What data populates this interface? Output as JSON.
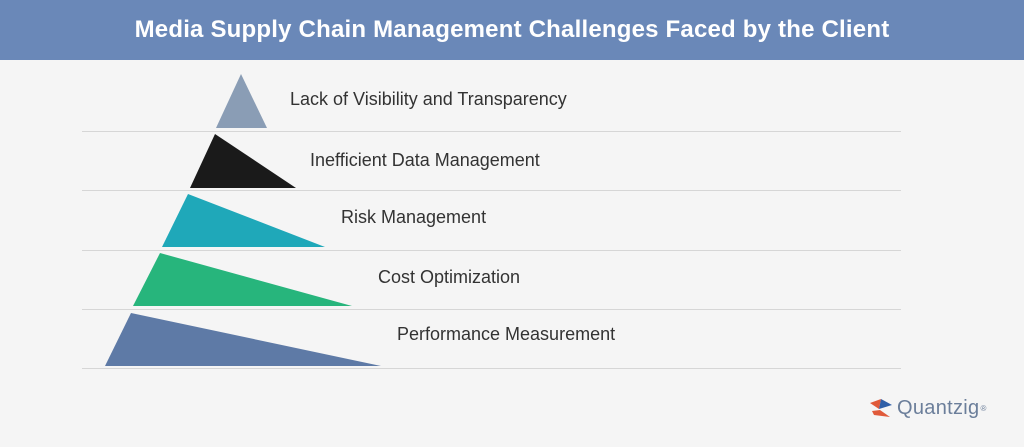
{
  "header": {
    "title": "Media Supply Chain Management Challenges Faced by the Client"
  },
  "pyramid": {
    "layers": [
      {
        "label": "Lack of Visibility and Transparency",
        "color": "#8a9db5"
      },
      {
        "label": "Inefficient Data Management",
        "color": "#1a1a1a"
      },
      {
        "label": "Risk Management",
        "color": "#1fa8b9"
      },
      {
        "label": "Cost Optimization",
        "color": "#27b57c"
      },
      {
        "label": "Performance Measurement",
        "color": "#5e7aa6"
      }
    ]
  },
  "logo": {
    "text": "Quantzig",
    "trademark": "®",
    "colors": [
      "#e05a3a",
      "#2f5fa8"
    ]
  }
}
